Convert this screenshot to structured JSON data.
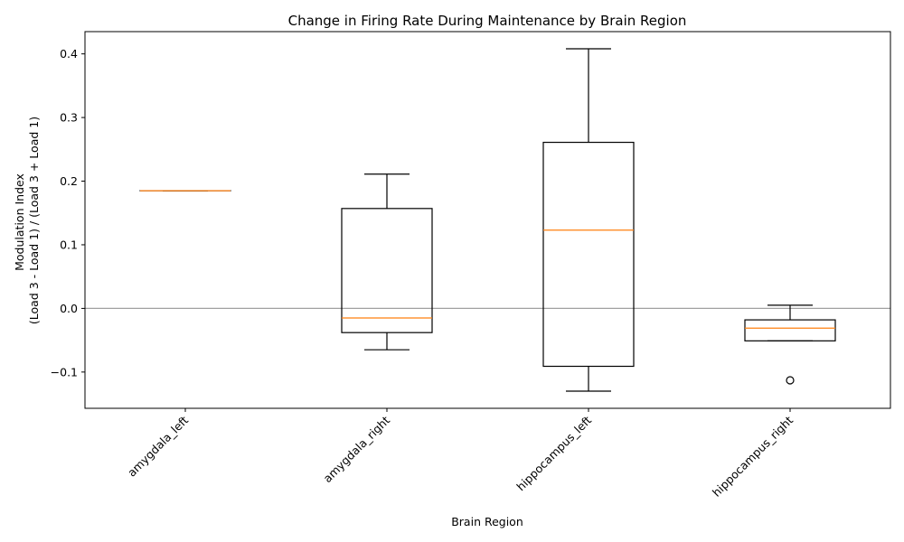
{
  "chart_data": {
    "type": "box",
    "title": "Change in Firing Rate During Maintenance by Brain Region",
    "xlabel": "Brain Region",
    "ylabel_lines": [
      "Modulation Index",
      "(Load 3 - Load 1) / (Load 3 + Load 1)"
    ],
    "ylim": [
      -0.157,
      0.435
    ],
    "yticks": [
      -0.1,
      0.0,
      0.1,
      0.2,
      0.3,
      0.4
    ],
    "ytick_labels": [
      "−0.1",
      "0.0",
      "0.1",
      "0.2",
      "0.3",
      "0.4"
    ],
    "reference_line_y": 0.0,
    "categories": [
      "amygdala_left",
      "amygdala_right",
      "hippocampus_left",
      "hippocampus_right"
    ],
    "boxes": [
      {
        "category": "amygdala_left",
        "whisker_low": 0.185,
        "q1": 0.185,
        "median": 0.185,
        "q3": 0.185,
        "whisker_high": 0.185,
        "outliers": []
      },
      {
        "category": "amygdala_right",
        "whisker_low": -0.065,
        "q1": -0.038,
        "median": -0.015,
        "q3": 0.157,
        "whisker_high": 0.211,
        "outliers": []
      },
      {
        "category": "hippocampus_left",
        "whisker_low": -0.13,
        "q1": -0.091,
        "median": 0.123,
        "q3": 0.261,
        "whisker_high": 0.408,
        "outliers": []
      },
      {
        "category": "hippocampus_right",
        "whisker_low": -0.051,
        "q1": -0.051,
        "median": -0.031,
        "q3": -0.018,
        "whisker_high": 0.005,
        "outliers": [
          -0.113
        ]
      }
    ],
    "colors": {
      "box": "#000000",
      "median": "#ff7f0e",
      "reference_line": "#a0a0a0"
    },
    "grid": false,
    "legend": "none"
  }
}
